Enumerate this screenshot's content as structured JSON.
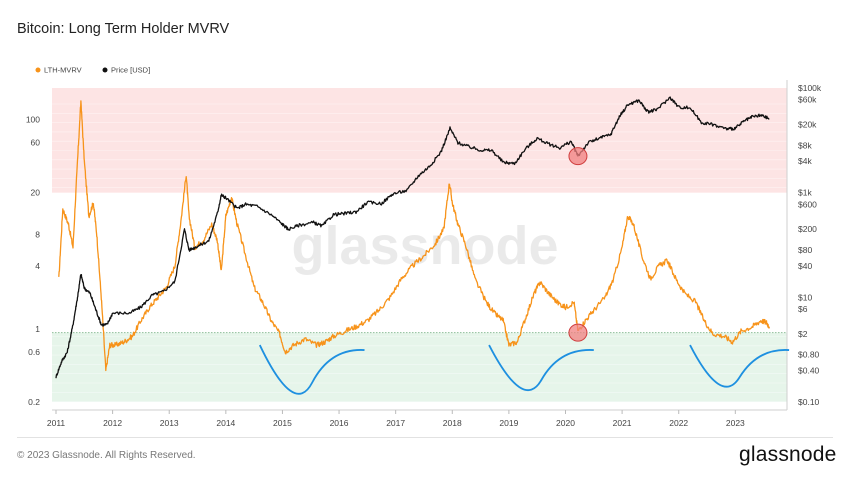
{
  "title": "Bitcoin: Long Term Holder MVRV",
  "footer": {
    "copyright": "© 2023 Glassnode. All Rights Reserved.",
    "brand": "glassnode"
  },
  "watermark": "glassnode",
  "colors": {
    "lth_mvrv": "#f7931a",
    "price": "#111111",
    "band_high": "#fde4e4",
    "band_low": "#e6f5ea",
    "threshold": "#8fbf9a",
    "curve": "#1e90e0",
    "marker": "#f08080"
  },
  "chart_data": {
    "type": "line",
    "legend": [
      {
        "name": "LTH-MVRV",
        "color": "#f7931a"
      },
      {
        "name": "Price [USD]",
        "color": "#111111"
      }
    ],
    "x_ticks": [
      "2011",
      "2012",
      "2013",
      "2014",
      "2015",
      "2016",
      "2017",
      "2018",
      "2019",
      "2020",
      "2021",
      "2022",
      "2023"
    ],
    "x_range": [
      2011.0,
      2023.62
    ],
    "left_axis": {
      "scale": "log",
      "range": [
        0.2,
        200
      ],
      "ticks": [
        0.2,
        0.6,
        1,
        4,
        8,
        20,
        60,
        100
      ],
      "tick_labels": [
        "0.2",
        "0.6",
        "1",
        "4",
        "8",
        "20",
        "60",
        "100"
      ]
    },
    "right_axis": {
      "scale": "log",
      "range": [
        0.1,
        100000
      ],
      "ticks": [
        0.1,
        0.4,
        0.8,
        2,
        6,
        10,
        40,
        80,
        200,
        600,
        1000,
        4000,
        8000,
        20000,
        60000,
        100000
      ],
      "tick_labels": [
        "$0.10",
        "$0.40",
        "$0.80",
        "$2",
        "$6",
        "$10",
        "$40",
        "$80",
        "$200",
        "$600",
        "$1k",
        "$4k",
        "$8k",
        "$20k",
        "$60k",
        "$100k"
      ]
    },
    "bands": [
      {
        "name": "high",
        "from": 20,
        "to": 200
      },
      {
        "name": "low",
        "from": 0.2,
        "to": 0.92
      }
    ],
    "threshold": 0.92,
    "series": [
      {
        "name": "LTH-MVRV",
        "axis": "left",
        "points": [
          [
            2011.05,
            3
          ],
          [
            2011.12,
            14
          ],
          [
            2011.22,
            10
          ],
          [
            2011.3,
            6
          ],
          [
            2011.38,
            40
          ],
          [
            2011.44,
            150
          ],
          [
            2011.5,
            40
          ],
          [
            2011.58,
            12
          ],
          [
            2011.66,
            16
          ],
          [
            2011.72,
            8
          ],
          [
            2011.8,
            2
          ],
          [
            2011.88,
            0.4
          ],
          [
            2011.95,
            0.7
          ],
          [
            2012.05,
            0.7
          ],
          [
            2012.2,
            0.75
          ],
          [
            2012.35,
            0.85
          ],
          [
            2012.5,
            1.2
          ],
          [
            2012.65,
            1.6
          ],
          [
            2012.8,
            2
          ],
          [
            2012.95,
            2.5
          ],
          [
            2013.1,
            4
          ],
          [
            2013.2,
            10
          ],
          [
            2013.3,
            30
          ],
          [
            2013.35,
            12
          ],
          [
            2013.45,
            6
          ],
          [
            2013.6,
            7
          ],
          [
            2013.75,
            10
          ],
          [
            2013.85,
            7
          ],
          [
            2013.92,
            3.5
          ],
          [
            2014.0,
            12
          ],
          [
            2014.1,
            18
          ],
          [
            2014.2,
            10
          ],
          [
            2014.35,
            5
          ],
          [
            2014.5,
            2.5
          ],
          [
            2014.65,
            1.8
          ],
          [
            2014.8,
            1.2
          ],
          [
            2014.95,
            0.9
          ],
          [
            2015.05,
            0.6
          ],
          [
            2015.2,
            0.7
          ],
          [
            2015.4,
            0.8
          ],
          [
            2015.6,
            0.7
          ],
          [
            2015.75,
            0.75
          ],
          [
            2015.9,
            0.85
          ],
          [
            2016.1,
            0.95
          ],
          [
            2016.3,
            1.05
          ],
          [
            2016.5,
            1.2
          ],
          [
            2016.7,
            1.5
          ],
          [
            2016.9,
            2
          ],
          [
            2017.1,
            3
          ],
          [
            2017.3,
            4
          ],
          [
            2017.5,
            5
          ],
          [
            2017.7,
            6.5
          ],
          [
            2017.85,
            9
          ],
          [
            2017.95,
            25
          ],
          [
            2018.0,
            16
          ],
          [
            2018.1,
            10
          ],
          [
            2018.25,
            6
          ],
          [
            2018.4,
            3
          ],
          [
            2018.6,
            1.8
          ],
          [
            2018.75,
            1.4
          ],
          [
            2018.9,
            1.2
          ],
          [
            2019.0,
            0.7
          ],
          [
            2019.15,
            0.75
          ],
          [
            2019.3,
            1.3
          ],
          [
            2019.45,
            2.2
          ],
          [
            2019.55,
            2.8
          ],
          [
            2019.7,
            2.2
          ],
          [
            2019.85,
            1.8
          ],
          [
            2020.0,
            1.6
          ],
          [
            2020.15,
            1.8
          ],
          [
            2020.22,
            0.95
          ],
          [
            2020.35,
            1.2
          ],
          [
            2020.5,
            1.5
          ],
          [
            2020.7,
            2
          ],
          [
            2020.85,
            3
          ],
          [
            2021.0,
            6
          ],
          [
            2021.1,
            12
          ],
          [
            2021.2,
            10
          ],
          [
            2021.35,
            5
          ],
          [
            2021.5,
            3
          ],
          [
            2021.65,
            4
          ],
          [
            2021.8,
            4.5
          ],
          [
            2021.95,
            3
          ],
          [
            2022.1,
            2.2
          ],
          [
            2022.3,
            1.8
          ],
          [
            2022.45,
            1.2
          ],
          [
            2022.6,
            0.9
          ],
          [
            2022.8,
            0.85
          ],
          [
            2022.95,
            0.75
          ],
          [
            2023.1,
            0.95
          ],
          [
            2023.3,
            1.05
          ],
          [
            2023.45,
            1.2
          ],
          [
            2023.55,
            1.15
          ],
          [
            2023.6,
            1.05
          ]
        ]
      },
      {
        "name": "Price [USD]",
        "axis": "right",
        "points": [
          [
            2011.0,
            0.3
          ],
          [
            2011.1,
            0.6
          ],
          [
            2011.2,
            0.9
          ],
          [
            2011.3,
            3
          ],
          [
            2011.38,
            10
          ],
          [
            2011.44,
            28
          ],
          [
            2011.5,
            15
          ],
          [
            2011.6,
            12
          ],
          [
            2011.7,
            6
          ],
          [
            2011.8,
            3
          ],
          [
            2011.9,
            3
          ],
          [
            2012.0,
            5
          ],
          [
            2012.3,
            5
          ],
          [
            2012.5,
            6.5
          ],
          [
            2012.7,
            11
          ],
          [
            2012.9,
            13
          ],
          [
            2013.1,
            20
          ],
          [
            2013.27,
            200
          ],
          [
            2013.35,
            80
          ],
          [
            2013.5,
            95
          ],
          [
            2013.7,
            120
          ],
          [
            2013.85,
            400
          ],
          [
            2013.92,
            900
          ],
          [
            2014.0,
            800
          ],
          [
            2014.2,
            500
          ],
          [
            2014.35,
            600
          ],
          [
            2014.55,
            550
          ],
          [
            2014.8,
            380
          ],
          [
            2015.0,
            250
          ],
          [
            2015.1,
            200
          ],
          [
            2015.3,
            240
          ],
          [
            2015.55,
            270
          ],
          [
            2015.7,
            230
          ],
          [
            2015.9,
            380
          ],
          [
            2016.1,
            400
          ],
          [
            2016.3,
            430
          ],
          [
            2016.5,
            650
          ],
          [
            2016.75,
            620
          ],
          [
            2016.95,
            950
          ],
          [
            2017.2,
            1100
          ],
          [
            2017.4,
            2100
          ],
          [
            2017.6,
            3200
          ],
          [
            2017.8,
            6000
          ],
          [
            2017.96,
            17000
          ],
          [
            2018.1,
            9000
          ],
          [
            2018.3,
            7500
          ],
          [
            2018.5,
            6500
          ],
          [
            2018.7,
            6400
          ],
          [
            2018.9,
            3800
          ],
          [
            2019.1,
            3600
          ],
          [
            2019.3,
            7000
          ],
          [
            2019.5,
            11000
          ],
          [
            2019.7,
            8500
          ],
          [
            2019.9,
            7200
          ],
          [
            2020.1,
            9500
          ],
          [
            2020.22,
            5000
          ],
          [
            2020.4,
            9000
          ],
          [
            2020.6,
            11000
          ],
          [
            2020.8,
            13000
          ],
          [
            2020.95,
            28000
          ],
          [
            2021.1,
            48000
          ],
          [
            2021.3,
            58000
          ],
          [
            2021.45,
            35000
          ],
          [
            2021.6,
            38000
          ],
          [
            2021.85,
            66000
          ],
          [
            2022.0,
            43000
          ],
          [
            2022.2,
            42000
          ],
          [
            2022.4,
            22000
          ],
          [
            2022.6,
            20000
          ],
          [
            2022.85,
            16500
          ],
          [
            2023.0,
            17000
          ],
          [
            2023.15,
            23000
          ],
          [
            2023.3,
            28000
          ],
          [
            2023.45,
            30000
          ],
          [
            2023.6,
            26000
          ]
        ]
      }
    ],
    "annotations": [
      {
        "type": "circle",
        "x": 2020.22,
        "axis": "right",
        "y": 5000
      },
      {
        "type": "circle",
        "x": 2020.22,
        "axis": "left",
        "y": 0.92
      },
      {
        "type": "curve",
        "x": [
          2014.6,
          2016.45
        ],
        "y_min": 0.32,
        "y_end": 0.6
      },
      {
        "type": "curve",
        "x": [
          2018.65,
          2020.5
        ],
        "y_min": 0.34,
        "y_end": 0.6
      },
      {
        "type": "curve",
        "x": [
          2022.2,
          2023.95
        ],
        "y_min": 0.36,
        "y_end": 0.6
      }
    ]
  }
}
